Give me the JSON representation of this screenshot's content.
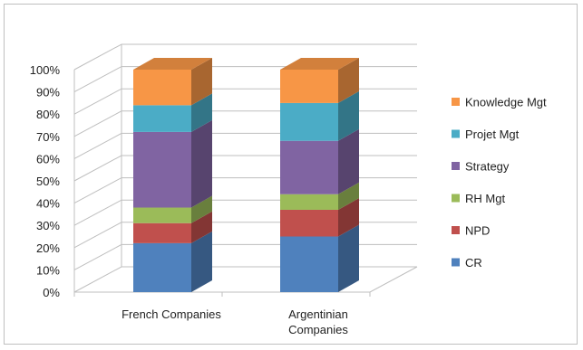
{
  "chart_data": {
    "type": "bar",
    "stacked": true,
    "percent": true,
    "three_d": true,
    "title": "",
    "xlabel": "",
    "ylabel": "",
    "ylim": [
      0,
      100
    ],
    "yticks": [
      "0%",
      "10%",
      "20%",
      "30%",
      "40%",
      "50%",
      "60%",
      "70%",
      "80%",
      "90%",
      "100%"
    ],
    "grid": true,
    "legend_position": "right",
    "categories": [
      [
        "French Companies"
      ],
      [
        "Argentinian",
        "Companies"
      ]
    ],
    "series": [
      {
        "name": "CR",
        "color": "#4f81bd",
        "values": [
          22,
          25
        ]
      },
      {
        "name": "NPD",
        "color": "#c0504d",
        "values": [
          9,
          12
        ]
      },
      {
        "name": "RH Mgt",
        "color": "#9bbb59",
        "values": [
          7,
          7
        ]
      },
      {
        "name": "Strategy",
        "color": "#8064a2",
        "values": [
          34,
          24
        ]
      },
      {
        "name": "Projet Mgt",
        "color": "#4bacc6",
        "values": [
          12,
          17
        ]
      },
      {
        "name": "Knowledge Mgt",
        "color": "#f79646",
        "values": [
          16,
          15
        ]
      }
    ]
  }
}
